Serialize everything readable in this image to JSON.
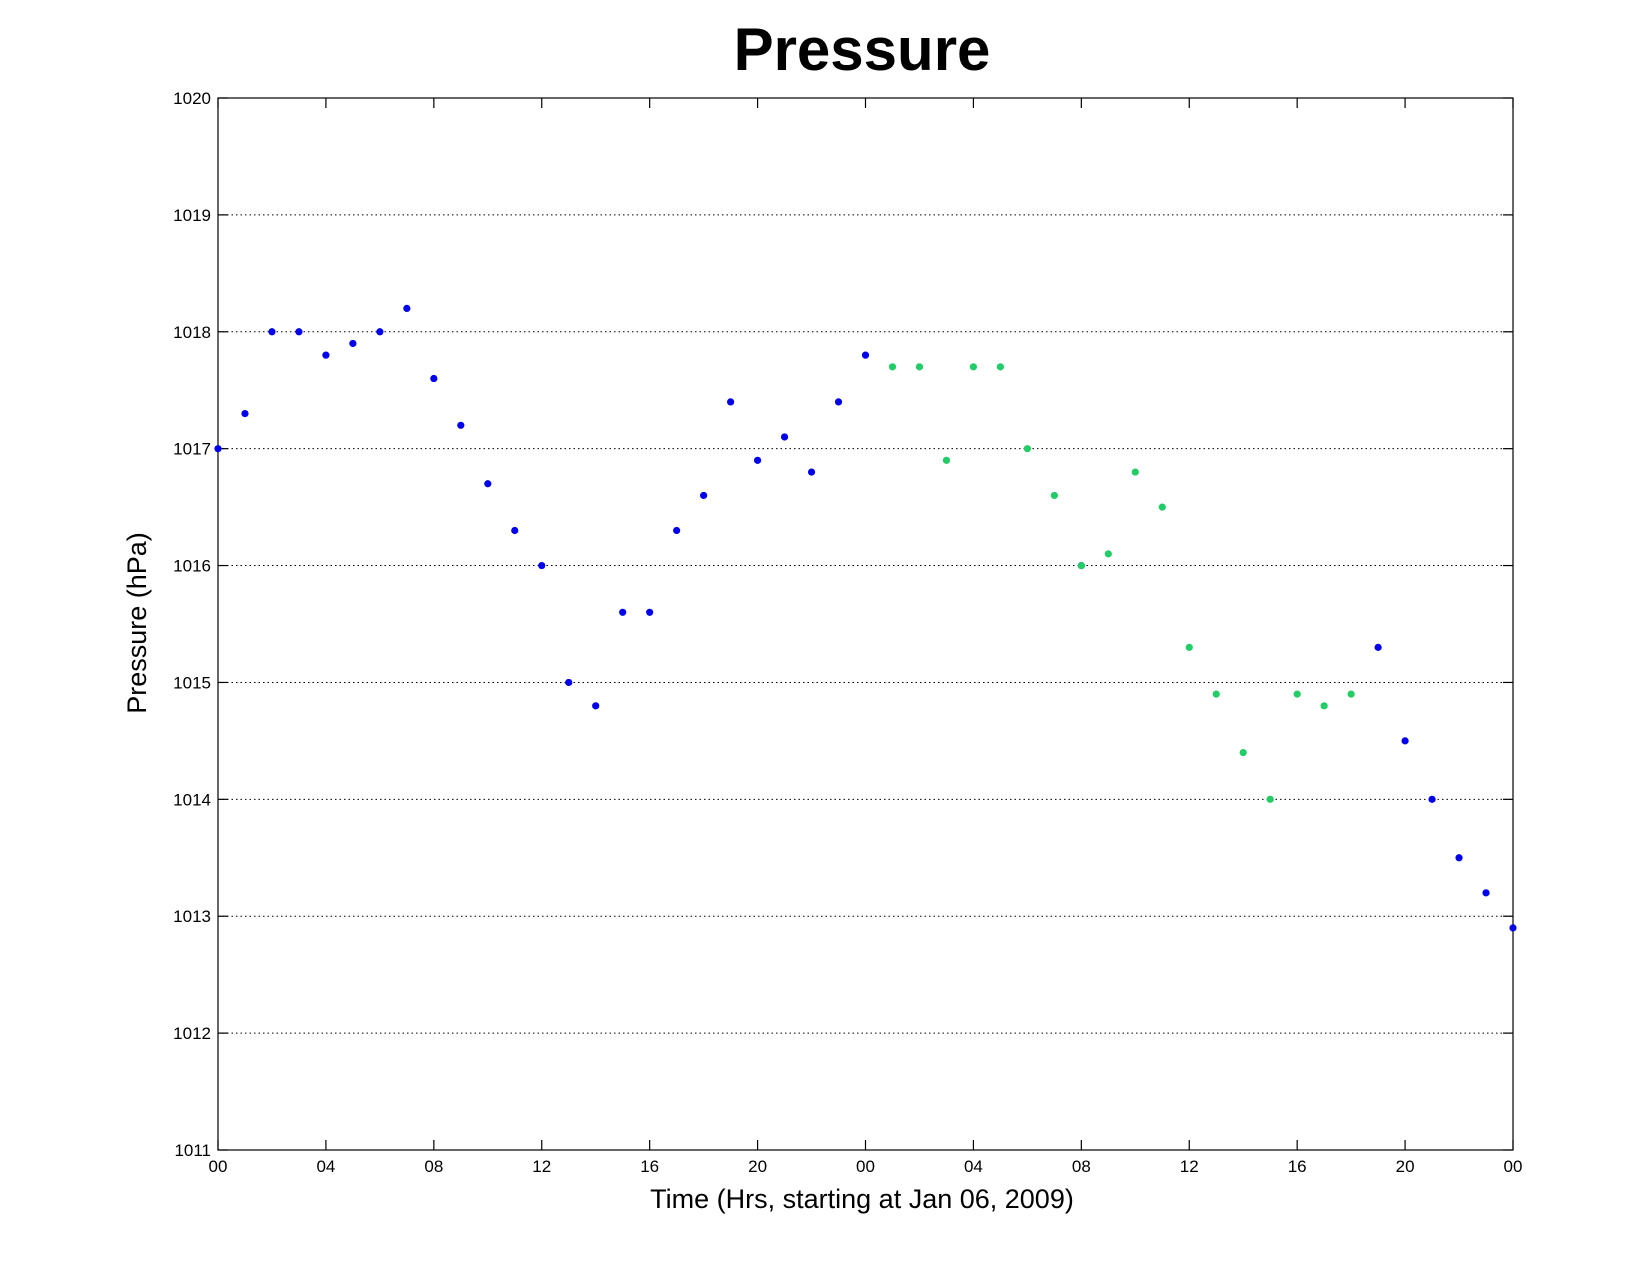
{
  "chart_data": {
    "type": "scatter",
    "title": "Pressure",
    "xlabel": "Time (Hrs, starting at Jan 06, 2009)",
    "ylabel": "Pressure (hPa)",
    "xlim": [
      0,
      48
    ],
    "ylim": [
      1011,
      1020
    ],
    "grid": "horizontal-dotted",
    "x_ticks": [
      {
        "value": 0,
        "label": "00"
      },
      {
        "value": 4,
        "label": "04"
      },
      {
        "value": 8,
        "label": "08"
      },
      {
        "value": 12,
        "label": "12"
      },
      {
        "value": 16,
        "label": "16"
      },
      {
        "value": 20,
        "label": "20"
      },
      {
        "value": 24,
        "label": "00"
      },
      {
        "value": 28,
        "label": "04"
      },
      {
        "value": 32,
        "label": "08"
      },
      {
        "value": 36,
        "label": "12"
      },
      {
        "value": 40,
        "label": "16"
      },
      {
        "value": 44,
        "label": "20"
      },
      {
        "value": 48,
        "label": "00"
      }
    ],
    "y_ticks": [
      1011,
      1012,
      1013,
      1014,
      1015,
      1016,
      1017,
      1018,
      1019,
      1020
    ],
    "series": [
      {
        "color": "#0000ee",
        "points": [
          [
            0,
            1017.0
          ],
          [
            1,
            1017.3
          ],
          [
            2,
            1018.0
          ],
          [
            3,
            1018.0
          ],
          [
            4,
            1017.8
          ],
          [
            5,
            1017.9
          ],
          [
            6,
            1018.0
          ],
          [
            7,
            1018.2
          ],
          [
            8,
            1017.6
          ],
          [
            9,
            1017.2
          ],
          [
            10,
            1016.7
          ],
          [
            11,
            1016.3
          ],
          [
            12,
            1016.0
          ],
          [
            13,
            1015.0
          ],
          [
            14,
            1014.8
          ],
          [
            15,
            1015.6
          ],
          [
            16,
            1015.6
          ],
          [
            17,
            1016.3
          ],
          [
            18,
            1016.6
          ],
          [
            19,
            1017.4
          ],
          [
            20,
            1016.9
          ],
          [
            21,
            1017.1
          ],
          [
            22,
            1016.8
          ],
          [
            23,
            1017.4
          ],
          [
            24,
            1017.8
          ],
          [
            32,
            1016.0
          ],
          [
            43,
            1015.3
          ],
          [
            44,
            1014.5
          ],
          [
            45,
            1014.0
          ],
          [
            46,
            1013.5
          ],
          [
            47,
            1013.2
          ],
          [
            48,
            1012.9
          ]
        ]
      },
      {
        "color": "#22cc66",
        "points": [
          [
            25,
            1017.7
          ],
          [
            26,
            1017.7
          ],
          [
            27,
            1016.9
          ],
          [
            28,
            1017.7
          ],
          [
            29,
            1017.7
          ],
          [
            30,
            1017.0
          ],
          [
            31,
            1016.6
          ],
          [
            32,
            1016.0
          ],
          [
            33,
            1016.1
          ],
          [
            34,
            1016.8
          ],
          [
            35,
            1016.5
          ],
          [
            36,
            1015.3
          ],
          [
            37,
            1014.9
          ],
          [
            38,
            1014.4
          ],
          [
            39,
            1014.0
          ],
          [
            40,
            1014.9
          ],
          [
            41,
            1014.8
          ],
          [
            42,
            1014.9
          ]
        ]
      }
    ]
  }
}
